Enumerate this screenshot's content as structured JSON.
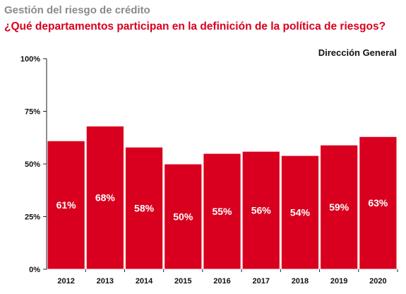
{
  "header": {
    "title": "Gestión del riesgo de crédito",
    "subtitle": "¿Qué departamentos participan en la definición de la política de riesgos?"
  },
  "colors": {
    "bar": "#d8001e",
    "bar_stroke": "#ffffff",
    "title": "#8a8a8a",
    "subtitle": "#d8001e",
    "grid": "#222222"
  },
  "chart_data": {
    "type": "bar",
    "series": [
      {
        "name": "Dirección General",
        "values": [
          61,
          68,
          58,
          50,
          55,
          56,
          54,
          59,
          63
        ],
        "value_labels": [
          "61%",
          "68%",
          "58%",
          "50%",
          "55%",
          "56%",
          "54%",
          "59%",
          "63%"
        ]
      }
    ],
    "categories": [
      "2012",
      "2013",
      "2014",
      "2015",
      "2016",
      "2017",
      "2018",
      "2019",
      "2020"
    ],
    "yticks": [
      0,
      25,
      50,
      75,
      100
    ],
    "ytick_labels": [
      "0%",
      "25%",
      "50%",
      "75%",
      "100%"
    ],
    "ylim": [
      0,
      100
    ],
    "grid": false,
    "legend": "top-right",
    "xlabel": "",
    "ylabel": ""
  }
}
